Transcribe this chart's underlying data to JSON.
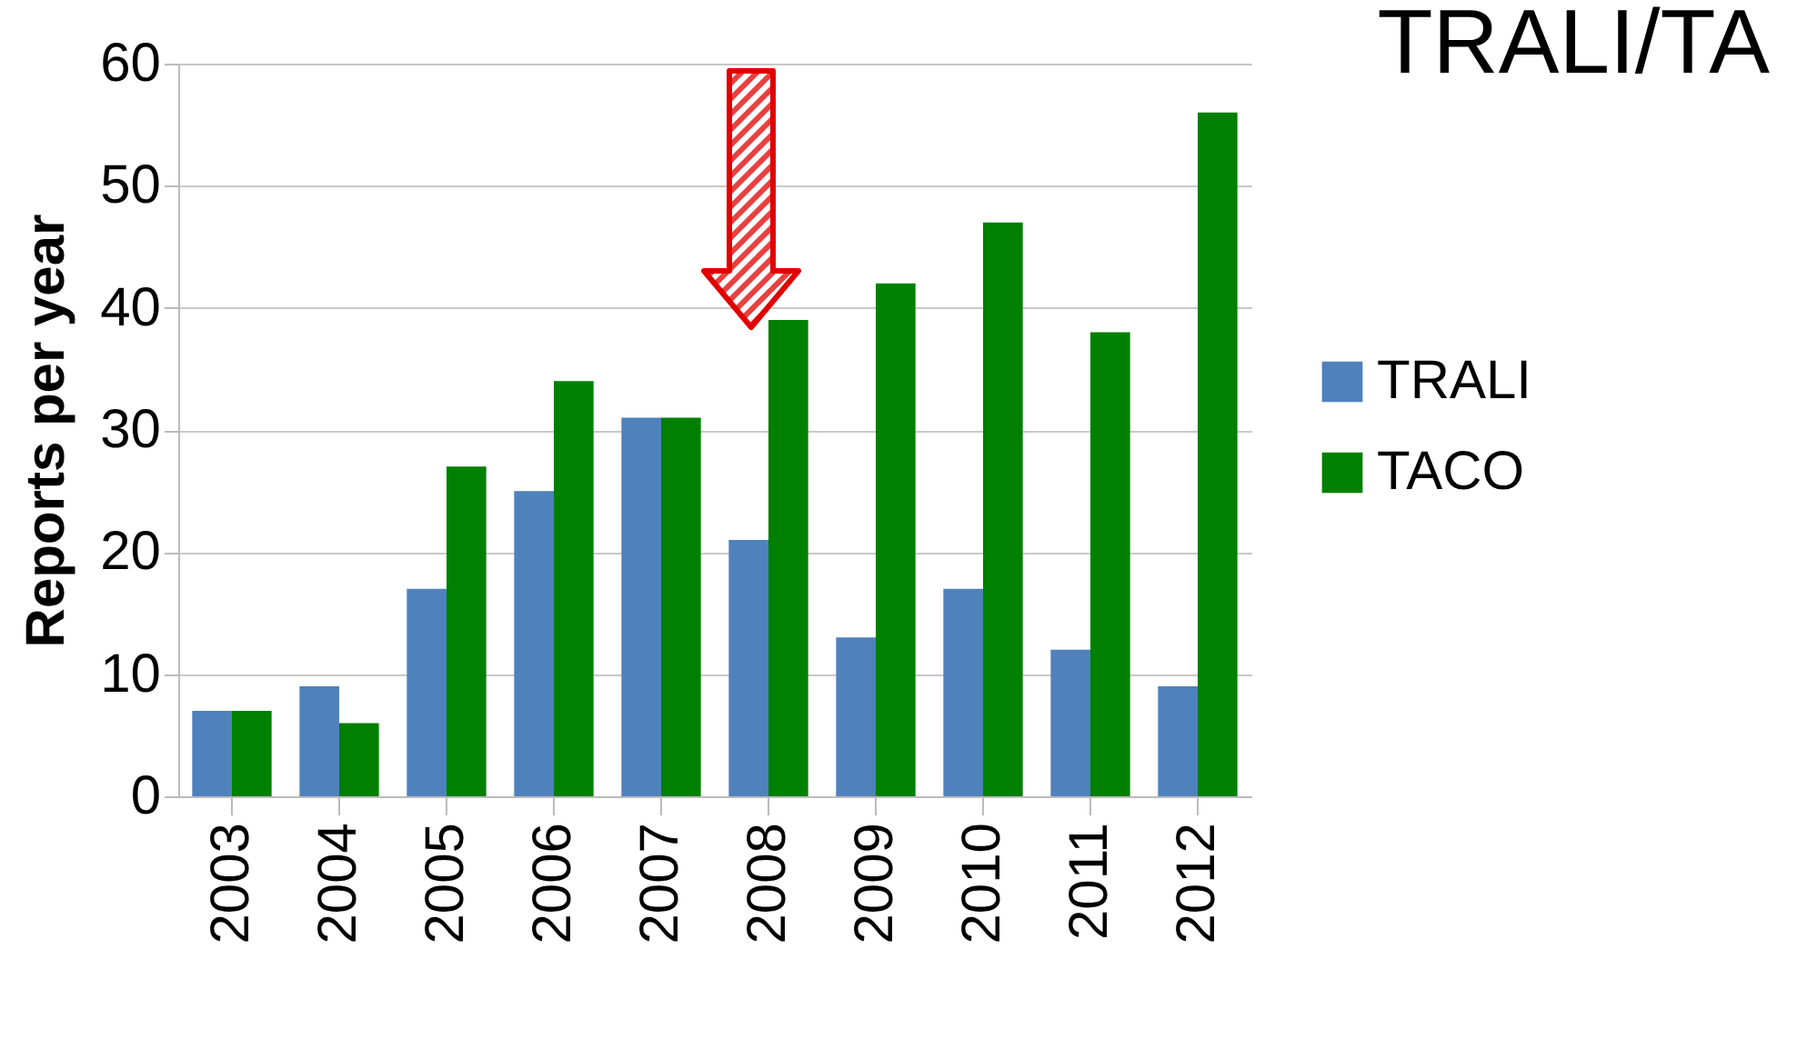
{
  "chart_data": {
    "type": "bar",
    "title": "TRALI/TA",
    "ylabel": "Reports per year",
    "categories": [
      "2003",
      "2004",
      "2005",
      "2006",
      "2007",
      "2008",
      "2009",
      "2010",
      "2011",
      "2012"
    ],
    "series": [
      {
        "name": "TRALI",
        "color": "#4f81bd",
        "values": [
          7,
          9,
          17,
          25,
          31,
          21,
          13,
          17,
          12,
          9
        ]
      },
      {
        "name": "TACO",
        "color": "#008000",
        "values": [
          7,
          6,
          27,
          34,
          31,
          39,
          42,
          47,
          38,
          56
        ]
      }
    ],
    "ylim": [
      0,
      60
    ],
    "yticks": [
      0,
      10,
      20,
      30,
      40,
      50,
      60
    ],
    "grid": "y",
    "legend": "right"
  }
}
